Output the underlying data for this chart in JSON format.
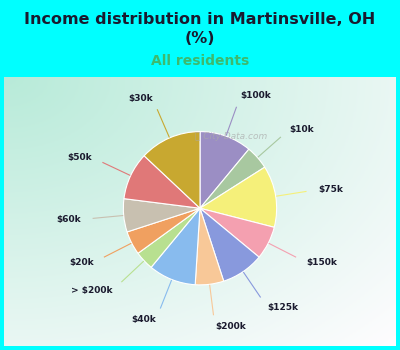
{
  "title": "Income distribution in Martinsville, OH\n(%)",
  "subtitle": "All residents",
  "title_color": "#1a1a2e",
  "subtitle_color": "#3dba6e",
  "background_color": "#00ffff",
  "chart_bg_left": "#b8e8d8",
  "chart_bg_right": "#f0faf5",
  "watermark": "City-Data.com",
  "labels": [
    "$100k",
    "$10k",
    "$75k",
    "$150k",
    "$125k",
    "$200k",
    "$40k",
    "> $200k",
    "$20k",
    "$60k",
    "$50k",
    "$30k"
  ],
  "values": [
    11,
    5,
    13,
    7,
    9,
    6,
    10,
    4,
    5,
    7,
    10,
    13
  ],
  "colors": [
    "#9b8ec4",
    "#a8c8a0",
    "#f5f07a",
    "#f4a0b0",
    "#8899dd",
    "#f8c898",
    "#88bbee",
    "#b8e090",
    "#f0a060",
    "#c8c0b0",
    "#e07878",
    "#c8a830"
  ],
  "line_colors": [
    "#9b8ec4",
    "#a8c8a0",
    "#f5f07a",
    "#f4a0b0",
    "#8899dd",
    "#f8c898",
    "#88bbee",
    "#b8e090",
    "#f0a060",
    "#c8c0b0",
    "#e07878",
    "#c8a830"
  ],
  "figsize": [
    4.0,
    3.5
  ],
  "dpi": 100,
  "startangle": 90
}
